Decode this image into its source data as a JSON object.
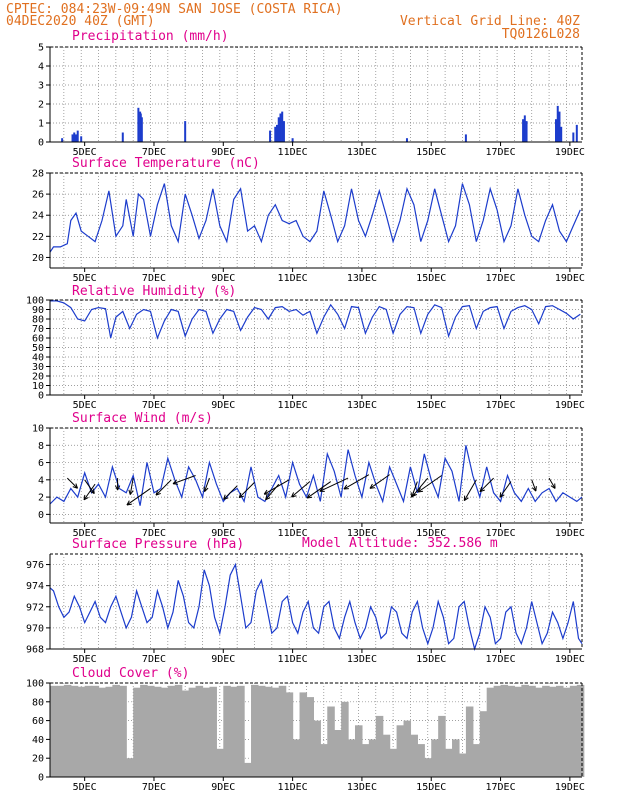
{
  "header": {
    "line1": "CPTEC:  084:23W-09:49N  SAN JOSE (COSTA RICA)",
    "line2_left": "04DEC2020 40Z (GMT)",
    "line2_right": "Vertical Grid Line: 40Z",
    "line3_right": "TQ0126L028"
  },
  "colors": {
    "header": "#e07020",
    "panel_title": "#e0008c",
    "series": "#1c3ccc",
    "cloud": "#a8a8a8",
    "wind_arrow": "#000000"
  },
  "x_axis_labels": [
    "5DEC",
    "7DEC",
    "9DEC",
    "11DEC",
    "13DEC",
    "15DEC",
    "17DEC",
    "19DEC"
  ],
  "model_altitude_label": "Model Altitude: 352.586 m",
  "chart_data": [
    {
      "id": "precip",
      "type": "bar",
      "title": "Precipitation (mm/h)",
      "ylim": [
        0,
        5
      ],
      "yticks": [
        0,
        1,
        2,
        3,
        4,
        5
      ],
      "x_days": [
        4.35,
        4.65,
        4.7,
        4.75,
        4.8,
        4.9,
        6.1,
        6.55,
        6.6,
        6.62,
        6.65,
        7.9,
        10.35,
        10.5,
        10.55,
        10.6,
        10.65,
        10.7,
        10.75,
        11.0,
        14.3,
        16.0,
        17.65,
        17.7,
        17.75,
        18.6,
        18.65,
        18.7,
        18.75,
        19.1,
        19.2
      ],
      "values": [
        0.2,
        0.4,
        0.5,
        0.4,
        0.6,
        0.3,
        0.5,
        1.8,
        1.6,
        1.5,
        1.3,
        1.1,
        0.6,
        0.8,
        0.9,
        1.3,
        1.5,
        1.6,
        1.1,
        0.2,
        0.2,
        0.4,
        1.2,
        1.4,
        1.1,
        1.2,
        1.9,
        1.6,
        0.8,
        0.5,
        0.9
      ]
    },
    {
      "id": "temp",
      "type": "line",
      "title": "Surface Temperature (nC)",
      "ylim": [
        19,
        28
      ],
      "yticks": [
        20,
        22,
        24,
        26,
        28
      ],
      "x_days": [
        4.0,
        4.1,
        4.3,
        4.5,
        4.6,
        4.75,
        4.9,
        5.1,
        5.3,
        5.5,
        5.7,
        5.9,
        6.1,
        6.2,
        6.4,
        6.55,
        6.7,
        6.9,
        7.1,
        7.3,
        7.5,
        7.7,
        7.9,
        8.1,
        8.3,
        8.5,
        8.7,
        8.9,
        9.1,
        9.3,
        9.5,
        9.7,
        9.9,
        10.1,
        10.3,
        10.5,
        10.7,
        10.9,
        11.1,
        11.3,
        11.5,
        11.7,
        11.9,
        12.1,
        12.3,
        12.5,
        12.7,
        12.9,
        13.1,
        13.3,
        13.5,
        13.7,
        13.9,
        14.1,
        14.3,
        14.5,
        14.7,
        14.9,
        15.1,
        15.3,
        15.5,
        15.7,
        15.9,
        16.1,
        16.3,
        16.5,
        16.7,
        16.9,
        17.1,
        17.3,
        17.5,
        17.7,
        17.9,
        18.1,
        18.3,
        18.5,
        18.7,
        18.9,
        19.1,
        19.3
      ],
      "values": [
        20.5,
        21.0,
        21.0,
        21.3,
        23.5,
        24.2,
        22.5,
        22.0,
        21.5,
        23.5,
        26.3,
        22.0,
        23.0,
        25.5,
        22.0,
        26.0,
        25.5,
        22.0,
        25.0,
        27.0,
        23.0,
        21.5,
        26.0,
        24.0,
        21.8,
        23.5,
        26.5,
        23.0,
        21.5,
        25.5,
        26.5,
        22.5,
        23.0,
        21.5,
        24.0,
        25.0,
        23.5,
        23.2,
        23.5,
        22.0,
        21.5,
        22.5,
        26.3,
        24.0,
        21.5,
        23.0,
        26.5,
        23.5,
        22.0,
        24.0,
        26.3,
        24.0,
        21.5,
        23.5,
        26.5,
        25.0,
        21.5,
        23.5,
        26.5,
        24.0,
        21.5,
        23.0,
        27.0,
        25.0,
        21.5,
        23.5,
        26.5,
        24.5,
        21.5,
        23.0,
        26.5,
        24.0,
        22.0,
        21.5,
        23.5,
        25.0,
        22.5,
        21.5,
        23.0,
        24.5
      ]
    },
    {
      "id": "rh",
      "type": "line",
      "title": "Relative Humidity (%)",
      "ylim": [
        0,
        100
      ],
      "yticks": [
        0,
        10,
        20,
        30,
        40,
        50,
        60,
        70,
        80,
        90,
        100
      ],
      "x_days": [
        4.0,
        4.2,
        4.4,
        4.6,
        4.8,
        5.0,
        5.2,
        5.4,
        5.6,
        5.75,
        5.9,
        6.1,
        6.3,
        6.5,
        6.7,
        6.9,
        7.1,
        7.3,
        7.5,
        7.7,
        7.9,
        8.1,
        8.3,
        8.5,
        8.7,
        8.9,
        9.1,
        9.3,
        9.5,
        9.7,
        9.9,
        10.1,
        10.3,
        10.5,
        10.7,
        10.9,
        11.1,
        11.3,
        11.5,
        11.7,
        11.9,
        12.1,
        12.3,
        12.5,
        12.7,
        12.9,
        13.1,
        13.3,
        13.5,
        13.7,
        13.9,
        14.1,
        14.3,
        14.5,
        14.7,
        14.9,
        15.1,
        15.3,
        15.5,
        15.7,
        15.9,
        16.1,
        16.3,
        16.5,
        16.7,
        16.9,
        17.1,
        17.3,
        17.5,
        17.7,
        17.9,
        18.1,
        18.3,
        18.5,
        18.7,
        18.9,
        19.1,
        19.3
      ],
      "values": [
        99,
        99,
        97,
        92,
        80,
        78,
        90,
        92,
        91,
        60,
        82,
        88,
        70,
        85,
        90,
        88,
        60,
        78,
        90,
        88,
        62,
        80,
        90,
        88,
        65,
        80,
        90,
        88,
        68,
        82,
        92,
        90,
        80,
        92,
        93,
        88,
        90,
        84,
        88,
        65,
        82,
        95,
        85,
        70,
        93,
        92,
        65,
        82,
        93,
        90,
        65,
        85,
        93,
        92,
        65,
        85,
        95,
        92,
        62,
        82,
        93,
        94,
        70,
        88,
        92,
        93,
        70,
        88,
        92,
        94,
        90,
        75,
        93,
        94,
        90,
        86,
        80,
        85
      ]
    },
    {
      "id": "wind",
      "type": "line",
      "title": "Surface Wind (m/s)",
      "ylim": [
        -1,
        10
      ],
      "yticks": [
        0,
        2,
        4,
        6,
        8,
        10
      ],
      "x_days": [
        4.0,
        4.2,
        4.4,
        4.6,
        4.8,
        5.0,
        5.2,
        5.4,
        5.6,
        5.8,
        6.0,
        6.2,
        6.4,
        6.6,
        6.8,
        7.0,
        7.2,
        7.4,
        7.6,
        7.8,
        8.0,
        8.2,
        8.4,
        8.6,
        8.8,
        9.0,
        9.2,
        9.4,
        9.6,
        9.8,
        10.0,
        10.2,
        10.4,
        10.6,
        10.8,
        11.0,
        11.2,
        11.4,
        11.6,
        11.8,
        12.0,
        12.2,
        12.4,
        12.6,
        12.8,
        13.0,
        13.2,
        13.4,
        13.6,
        13.8,
        14.0,
        14.2,
        14.4,
        14.6,
        14.8,
        15.0,
        15.2,
        15.4,
        15.6,
        15.8,
        16.0,
        16.2,
        16.4,
        16.6,
        16.8,
        17.0,
        17.2,
        17.4,
        17.6,
        17.8,
        18.0,
        18.2,
        18.4,
        18.6,
        18.8,
        19.0,
        19.2,
        19.35
      ],
      "values": [
        1.2,
        2.0,
        1.5,
        3.0,
        2.0,
        4.8,
        2.5,
        3.5,
        2.0,
        5.5,
        3.0,
        2.5,
        4.5,
        1.0,
        6.0,
        2.5,
        3.0,
        6.5,
        4.0,
        2.0,
        5.5,
        4.0,
        2.0,
        6.0,
        3.5,
        1.5,
        2.5,
        3.0,
        1.5,
        5.5,
        2.0,
        1.5,
        3.0,
        4.5,
        2.0,
        6.0,
        3.5,
        2.0,
        4.5,
        1.5,
        7.0,
        5.0,
        2.0,
        7.5,
        4.5,
        2.0,
        6.0,
        3.5,
        1.5,
        5.5,
        3.5,
        1.5,
        5.5,
        2.5,
        7.0,
        4.0,
        2.0,
        6.5,
        5.0,
        1.5,
        8.0,
        4.5,
        2.0,
        5.5,
        2.5,
        1.5,
        4.5,
        2.5,
        1.5,
        3.0,
        1.5,
        2.5,
        3.0,
        1.5,
        2.5,
        2.0,
        1.5,
        2.0
      ],
      "arrows": [
        {
          "x": 4.5,
          "y": 4.2,
          "dir": 135,
          "mag": 1.2
        },
        {
          "x": 5.0,
          "y": 4.0,
          "dir": 145,
          "mag": 1.4
        },
        {
          "x": 5.3,
          "y": 3.5,
          "dir": 215,
          "mag": 1.6
        },
        {
          "x": 5.95,
          "y": 4.2,
          "dir": 180,
          "mag": 1.0
        },
        {
          "x": 6.4,
          "y": 4.2,
          "dir": 190,
          "mag": 1.4
        },
        {
          "x": 6.9,
          "y": 3.0,
          "dir": 235,
          "mag": 2.4
        },
        {
          "x": 7.5,
          "y": 4.0,
          "dir": 225,
          "mag": 1.8
        },
        {
          "x": 8.2,
          "y": 4.5,
          "dir": 250,
          "mag": 2.0
        },
        {
          "x": 8.6,
          "y": 4.2,
          "dir": 200,
          "mag": 1.2
        },
        {
          "x": 9.4,
          "y": 3.3,
          "dir": 225,
          "mag": 1.6
        },
        {
          "x": 9.9,
          "y": 3.7,
          "dir": 225,
          "mag": 1.8
        },
        {
          "x": 10.6,
          "y": 3.5,
          "dir": 220,
          "mag": 1.7
        },
        {
          "x": 10.9,
          "y": 4.0,
          "dir": 240,
          "mag": 2.4
        },
        {
          "x": 11.5,
          "y": 3.8,
          "dir": 230,
          "mag": 2.0
        },
        {
          "x": 12.1,
          "y": 3.8,
          "dir": 235,
          "mag": 2.4
        },
        {
          "x": 12.6,
          "y": 4.2,
          "dir": 245,
          "mag": 2.6
        },
        {
          "x": 13.2,
          "y": 4.6,
          "dir": 240,
          "mag": 2.4
        },
        {
          "x": 13.8,
          "y": 4.6,
          "dir": 235,
          "mag": 2.0
        },
        {
          "x": 14.6,
          "y": 3.8,
          "dir": 200,
          "mag": 1.4
        },
        {
          "x": 14.9,
          "y": 4.2,
          "dir": 220,
          "mag": 2.0
        },
        {
          "x": 15.3,
          "y": 4.5,
          "dir": 235,
          "mag": 2.4
        },
        {
          "x": 16.3,
          "y": 4.0,
          "dir": 210,
          "mag": 2.0
        },
        {
          "x": 16.8,
          "y": 4.2,
          "dir": 225,
          "mag": 1.6
        },
        {
          "x": 17.3,
          "y": 3.8,
          "dir": 215,
          "mag": 1.6
        },
        {
          "x": 17.9,
          "y": 4.0,
          "dir": 160,
          "mag": 1.0
        },
        {
          "x": 18.4,
          "y": 4.2,
          "dir": 150,
          "mag": 1.0
        }
      ]
    },
    {
      "id": "pres",
      "type": "line",
      "title": "Surface Pressure (hPa)",
      "ylim": [
        968,
        977
      ],
      "yticks": [
        968,
        970,
        972,
        974,
        976
      ],
      "x_days": [
        4.0,
        4.1,
        4.25,
        4.4,
        4.55,
        4.7,
        4.85,
        5.0,
        5.15,
        5.3,
        5.45,
        5.6,
        5.75,
        5.9,
        6.05,
        6.2,
        6.35,
        6.5,
        6.65,
        6.8,
        6.95,
        7.1,
        7.25,
        7.4,
        7.55,
        7.7,
        7.85,
        8.0,
        8.15,
        8.3,
        8.45,
        8.6,
        8.75,
        8.9,
        9.05,
        9.2,
        9.35,
        9.5,
        9.65,
        9.8,
        9.95,
        10.1,
        10.25,
        10.4,
        10.55,
        10.7,
        10.85,
        11.0,
        11.15,
        11.3,
        11.45,
        11.6,
        11.75,
        11.9,
        12.05,
        12.2,
        12.35,
        12.5,
        12.65,
        12.8,
        12.95,
        13.1,
        13.25,
        13.4,
        13.55,
        13.7,
        13.85,
        14.0,
        14.15,
        14.3,
        14.45,
        14.6,
        14.75,
        14.9,
        15.05,
        15.2,
        15.35,
        15.5,
        15.65,
        15.8,
        15.95,
        16.1,
        16.25,
        16.4,
        16.55,
        16.7,
        16.85,
        17.0,
        17.15,
        17.3,
        17.45,
        17.6,
        17.75,
        17.9,
        18.05,
        18.2,
        18.35,
        18.5,
        18.65,
        18.8,
        18.95,
        19.1,
        19.25,
        19.35
      ],
      "values": [
        973.8,
        973.5,
        972.0,
        971.0,
        971.5,
        973.0,
        972.0,
        970.5,
        971.5,
        972.5,
        971.0,
        970.5,
        972.0,
        973.0,
        971.5,
        970.0,
        971.0,
        973.5,
        972.0,
        970.5,
        971.0,
        973.5,
        972.0,
        970.0,
        971.5,
        974.5,
        973.0,
        970.5,
        970.0,
        972.0,
        975.5,
        974.0,
        971.0,
        969.5,
        972.0,
        975.0,
        976.0,
        973.0,
        970.0,
        970.5,
        973.5,
        974.5,
        972.0,
        969.5,
        970.0,
        972.5,
        973.0,
        970.5,
        969.5,
        971.5,
        972.5,
        970.0,
        969.5,
        972.0,
        972.5,
        970.0,
        969.0,
        971.0,
        972.5,
        970.5,
        969.0,
        970.0,
        972.0,
        971.0,
        969.0,
        969.5,
        972.0,
        971.5,
        969.5,
        969.0,
        971.5,
        972.5,
        970.0,
        968.5,
        970.0,
        972.5,
        971.0,
        968.5,
        969.0,
        972.0,
        972.5,
        970.0,
        968.0,
        969.5,
        972.0,
        971.0,
        968.5,
        969.0,
        971.5,
        972.0,
        969.5,
        968.5,
        970.0,
        972.5,
        970.5,
        968.5,
        969.5,
        971.5,
        970.5,
        969.0,
        970.5,
        972.5,
        969.0,
        968.5
      ]
    },
    {
      "id": "cloud",
      "type": "bar",
      "title": "Cloud Cover (%)",
      "ylim": [
        0,
        100
      ],
      "yticks": [
        0,
        20,
        40,
        60,
        80,
        100
      ],
      "x_days": [
        4.0,
        4.2,
        4.4,
        4.6,
        4.8,
        5.0,
        5.2,
        5.4,
        5.6,
        5.8,
        6.0,
        6.2,
        6.4,
        6.6,
        6.8,
        7.0,
        7.2,
        7.4,
        7.6,
        7.8,
        8.0,
        8.2,
        8.4,
        8.6,
        8.8,
        9.0,
        9.2,
        9.4,
        9.6,
        9.8,
        10.0,
        10.2,
        10.4,
        10.6,
        10.8,
        11.0,
        11.2,
        11.4,
        11.6,
        11.8,
        12.0,
        12.2,
        12.4,
        12.6,
        12.8,
        13.0,
        13.2,
        13.4,
        13.6,
        13.8,
        14.0,
        14.2,
        14.4,
        14.6,
        14.8,
        15.0,
        15.2,
        15.4,
        15.6,
        15.8,
        16.0,
        16.2,
        16.4,
        16.6,
        16.8,
        17.0,
        17.2,
        17.4,
        17.6,
        17.8,
        18.0,
        18.2,
        18.4,
        18.6,
        18.8,
        19.0,
        19.2
      ],
      "values": [
        97,
        97,
        98,
        97,
        96,
        97,
        97,
        95,
        96,
        98,
        97,
        20,
        95,
        98,
        97,
        96,
        95,
        97,
        98,
        92,
        95,
        97,
        95,
        96,
        30,
        97,
        96,
        97,
        15,
        98,
        97,
        96,
        95,
        97,
        90,
        40,
        90,
        85,
        60,
        35,
        75,
        50,
        80,
        40,
        55,
        35,
        40,
        65,
        45,
        30,
        55,
        60,
        45,
        35,
        20,
        40,
        65,
        30,
        40,
        25,
        75,
        35,
        70,
        95,
        97,
        98,
        97,
        96,
        98,
        97,
        95,
        97,
        96,
        97,
        95,
        97,
        98
      ]
    }
  ]
}
